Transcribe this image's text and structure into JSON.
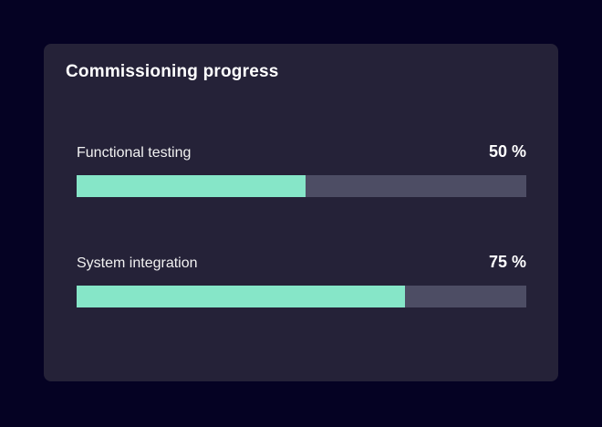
{
  "card": {
    "title": "Commissioning progress",
    "progress_items": [
      {
        "label": "Functional testing",
        "value_label": "50 %",
        "percent": 50,
        "fill_percent": 51
      },
      {
        "label": "System integration",
        "value_label": "75 %",
        "percent": 75,
        "fill_percent": 73
      }
    ],
    "colors": {
      "page_background": "#050223",
      "card_background": "#252238",
      "bar_track": "#4D4D64",
      "bar_fill": "#86E6C8",
      "title_text": "#FFFFFF",
      "label_text": "#F2F2F2",
      "value_text": "#FFFFFF"
    }
  },
  "chart_data": {
    "type": "bar",
    "title": "Commissioning progress",
    "categories": [
      "Functional testing",
      "System integration"
    ],
    "values": [
      50,
      75
    ],
    "value_unit": "%",
    "xlim": [
      0,
      100
    ],
    "legend": "none",
    "grid": false
  }
}
